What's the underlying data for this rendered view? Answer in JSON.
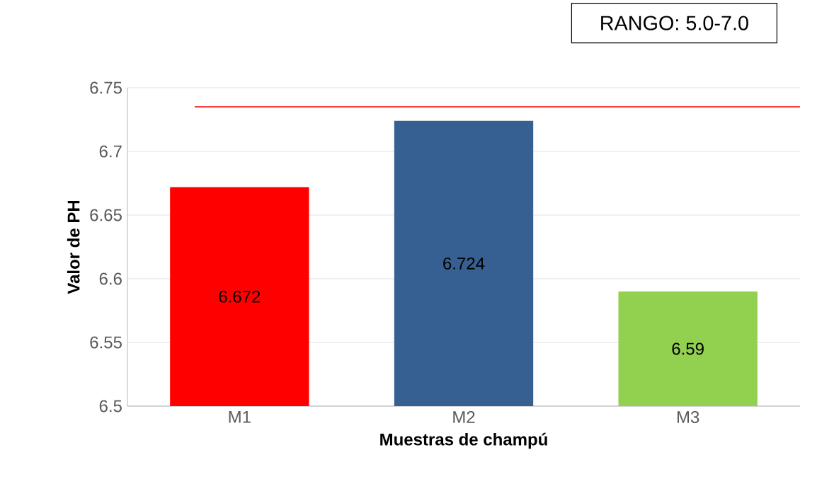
{
  "chart_data": {
    "type": "bar",
    "xlabel": "Muestras de champú",
    "ylabel": "Valor de PH",
    "categories": [
      "M1",
      "M2",
      "M3"
    ],
    "values": [
      6.672,
      6.724,
      6.59
    ],
    "colors": [
      "#ff0000",
      "#376092",
      "#92d050"
    ],
    "ylim": [
      6.5,
      6.75
    ],
    "yticks": [
      6.5,
      6.55,
      6.6,
      6.65,
      6.7,
      6.75
    ],
    "grid": "y",
    "data_labels": true,
    "ref_lines": [
      {
        "axis": "y",
        "value": 6.735,
        "color": "#ff0000"
      }
    ],
    "annotations": [
      "RANGO: 5.0-7.0"
    ]
  }
}
